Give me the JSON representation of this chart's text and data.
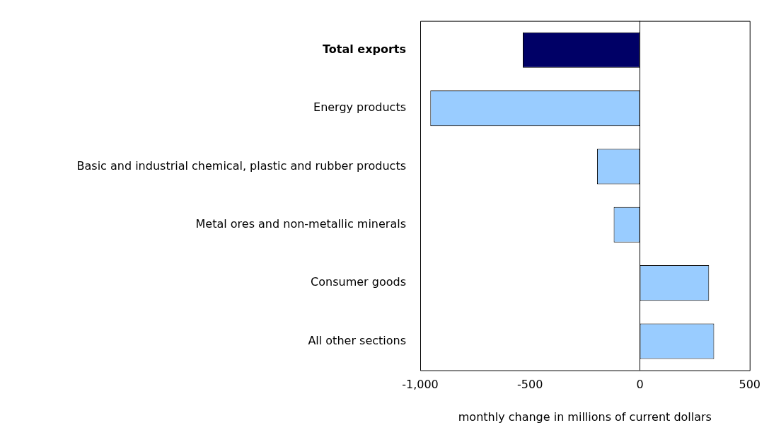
{
  "chart_data": {
    "type": "bar",
    "orientation": "horizontal",
    "xlabel": "monthly change in millions of current dollars",
    "categories": [
      "Total exports",
      "Energy products",
      "Basic and industrial chemical, plastic and rubber products",
      "Metal ores and non-metallic minerals",
      "Consumer goods",
      "All other sections"
    ],
    "values": [
      -533,
      -954,
      -195,
      -119,
      315,
      338
    ],
    "colors": [
      "#000066",
      "#99ccff",
      "#99ccff",
      "#99ccff",
      "#99ccff",
      "#99ccff"
    ],
    "xlim": [
      -1000,
      500
    ],
    "xticks": [
      {
        "value": -1000,
        "label": "-1,000"
      },
      -500,
      0,
      500
    ],
    "grid": false,
    "legend": false,
    "ref_lines": [
      {
        "axis": "x",
        "value": 0
      }
    ]
  }
}
